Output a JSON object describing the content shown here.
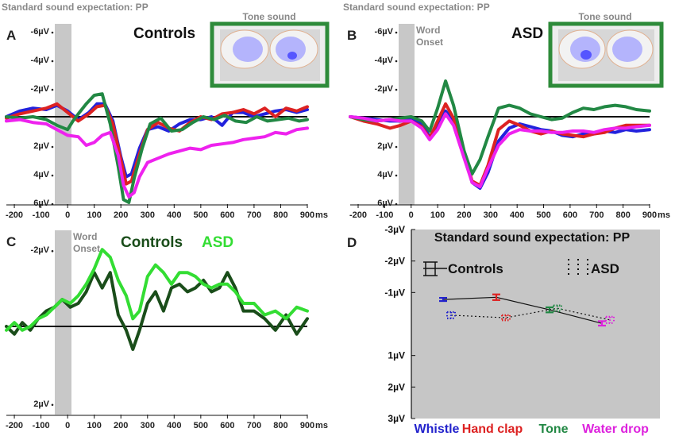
{
  "chart_data": [
    {
      "panel": "A",
      "type": "line",
      "title": "Controls",
      "header": "Standard sound expectation: PP",
      "inset_title": "Tone sound",
      "onset_label": "",
      "xlabel": "ms",
      "x_ticks": [
        -200,
        -100,
        0,
        100,
        200,
        300,
        400,
        500,
        600,
        700,
        800,
        900
      ],
      "y_ticks": [
        {
          "v": -6,
          "l": "-6µV"
        },
        {
          "v": -4,
          "l": "-4µV"
        },
        {
          "v": -2,
          "l": "-2µV"
        },
        {
          "v": 2,
          "l": "2µV"
        },
        {
          "v": 4,
          "l": "4µV"
        },
        {
          "v": 6,
          "l": "6µV"
        }
      ],
      "ylim": [
        -6.5,
        6.5
      ],
      "xlim": [
        -230,
        900
      ],
      "series": [
        {
          "name": "Whistle",
          "color": "#2222dd",
          "x": [
            -230,
            -180,
            -130,
            -80,
            -40,
            0,
            40,
            80,
            110,
            140,
            170,
            200,
            220,
            240,
            270,
            300,
            340,
            380,
            420,
            460,
            500,
            540,
            580,
            620,
            660,
            700,
            740,
            780,
            820,
            860,
            900
          ],
          "y": [
            0,
            -0.4,
            -0.6,
            -0.5,
            -0.8,
            -0.4,
            0.2,
            -0.3,
            -0.9,
            -0.9,
            0.3,
            2.8,
            4.2,
            4.0,
            2.2,
            0.9,
            0.7,
            1.0,
            0.5,
            0.2,
            0.2,
            0.0,
            0.6,
            -0.3,
            -0.3,
            0.0,
            -0.2,
            -0.4,
            -0.5,
            -0.3,
            -0.5
          ]
        },
        {
          "name": "Hand clap",
          "color": "#dd2222",
          "x": [
            -230,
            -180,
            -130,
            -80,
            -40,
            0,
            40,
            80,
            110,
            140,
            170,
            200,
            220,
            240,
            270,
            300,
            340,
            380,
            420,
            460,
            500,
            540,
            580,
            620,
            660,
            700,
            740,
            780,
            820,
            860,
            900
          ],
          "y": [
            0.1,
            -0.2,
            -0.4,
            -0.6,
            -0.9,
            -0.3,
            0.3,
            -0.2,
            -0.7,
            -0.8,
            0.5,
            3.0,
            4.7,
            4.5,
            2.6,
            0.9,
            0.4,
            0.8,
            1.0,
            0.4,
            0.0,
            0.2,
            -0.2,
            -0.3,
            -0.5,
            -0.2,
            -0.6,
            0.0,
            -0.6,
            -0.4,
            -0.7
          ]
        },
        {
          "name": "Tone",
          "color": "#228844",
          "x": [
            -230,
            -180,
            -130,
            -80,
            -40,
            0,
            20,
            40,
            70,
            100,
            130,
            160,
            190,
            210,
            230,
            250,
            280,
            310,
            350,
            390,
            430,
            470,
            510,
            550,
            590,
            630,
            670,
            710,
            750,
            790,
            830,
            870,
            900
          ],
          "y": [
            0,
            0.1,
            0,
            0.2,
            0.6,
            0.9,
            0.3,
            -0.2,
            -0.9,
            -1.5,
            -1.6,
            0.5,
            3.5,
            5.8,
            6.0,
            4.3,
            2.2,
            0.5,
            0.1,
            1.0,
            0.9,
            0.4,
            0.0,
            0.2,
            -0.1,
            0.3,
            0.4,
            0.0,
            0.3,
            0.2,
            0.1,
            0.3,
            0.2
          ]
        },
        {
          "name": "Water drop",
          "color": "#ee22ee",
          "x": [
            -230,
            -180,
            -130,
            -80,
            -40,
            0,
            40,
            70,
            100,
            130,
            160,
            190,
            210,
            230,
            250,
            270,
            300,
            340,
            380,
            420,
            460,
            500,
            540,
            580,
            620,
            660,
            700,
            740,
            780,
            820,
            860,
            900
          ],
          "y": [
            0.3,
            0.2,
            0.4,
            0.5,
            0.9,
            1.3,
            1.4,
            2.0,
            1.8,
            1.3,
            1.1,
            2.7,
            4.8,
            5.6,
            5.3,
            4.2,
            3.2,
            2.9,
            2.6,
            2.4,
            2.2,
            2.3,
            2.0,
            1.9,
            1.8,
            1.6,
            1.5,
            1.4,
            1.1,
            1.2,
            0.9,
            0.8
          ]
        }
      ]
    },
    {
      "panel": "B",
      "type": "line",
      "title": "ASD",
      "header": "Standard sound expectation: PP",
      "inset_title": "Tone sound",
      "onset_label": "Word Onset",
      "xlabel": "ms",
      "x_ticks": [
        -200,
        -100,
        0,
        100,
        200,
        300,
        400,
        500,
        600,
        700,
        800,
        900
      ],
      "y_ticks": [
        {
          "v": -6,
          "l": "-6µV"
        },
        {
          "v": -4,
          "l": "-4µV"
        },
        {
          "v": -2,
          "l": "-2µV"
        },
        {
          "v": 2,
          "l": "2µV"
        },
        {
          "v": 4,
          "l": "4µV"
        },
        {
          "v": 6,
          "l": "6µV"
        }
      ],
      "ylim": [
        -6.5,
        6.5
      ],
      "xlim": [
        -230,
        900
      ],
      "series": [
        {
          "name": "Whistle",
          "color": "#2222dd",
          "x": [
            -230,
            -180,
            -130,
            -80,
            -40,
            0,
            40,
            70,
            100,
            130,
            160,
            200,
            230,
            260,
            290,
            330,
            370,
            410,
            450,
            490,
            530,
            570,
            610,
            650,
            690,
            730,
            770,
            810,
            850,
            900
          ],
          "y": [
            0,
            0.1,
            0.2,
            0.3,
            0.3,
            0.1,
            0.5,
            1.4,
            0.6,
            -0.4,
            0.3,
            2.6,
            4.6,
            5.0,
            3.9,
            1.7,
            0.8,
            0.5,
            0.7,
            0.9,
            1.0,
            1.3,
            1.4,
            1.2,
            1.2,
            1.0,
            1.1,
            0.9,
            1.0,
            0.9
          ]
        },
        {
          "name": "Hand clap",
          "color": "#dd2222",
          "x": [
            -230,
            -180,
            -130,
            -80,
            -40,
            0,
            40,
            70,
            100,
            130,
            160,
            200,
            230,
            260,
            290,
            330,
            370,
            410,
            450,
            490,
            530,
            570,
            610,
            650,
            690,
            730,
            770,
            810,
            850,
            900
          ],
          "y": [
            0,
            0.3,
            0.5,
            0.8,
            0.6,
            0.3,
            0.7,
            1.5,
            0.3,
            -0.9,
            0.1,
            2.6,
            4.5,
            4.8,
            3.4,
            0.9,
            0.3,
            0.6,
            1.0,
            1.2,
            1.0,
            1.2,
            1.3,
            1.4,
            1.2,
            1.1,
            0.8,
            0.6,
            0.6,
            0.6
          ]
        },
        {
          "name": "Tone",
          "color": "#228844",
          "x": [
            -230,
            -180,
            -130,
            -80,
            -40,
            0,
            40,
            70,
            100,
            130,
            160,
            200,
            230,
            260,
            290,
            330,
            370,
            410,
            450,
            490,
            530,
            570,
            610,
            650,
            690,
            730,
            770,
            810,
            850,
            900
          ],
          "y": [
            0,
            0.2,
            0.3,
            0.2,
            0.1,
            0.0,
            0.3,
            1.0,
            -0.6,
            -2.5,
            -0.8,
            2.4,
            4.0,
            3.0,
            1.4,
            -0.6,
            -0.8,
            -0.6,
            -0.2,
            0.0,
            0.2,
            0.1,
            -0.3,
            -0.6,
            -0.5,
            -0.7,
            -0.8,
            -0.7,
            -0.5,
            -0.4
          ]
        },
        {
          "name": "Water drop",
          "color": "#ee22ee",
          "x": [
            -230,
            -180,
            -130,
            -80,
            -40,
            0,
            40,
            70,
            100,
            130,
            160,
            200,
            230,
            260,
            290,
            330,
            370,
            410,
            450,
            490,
            530,
            570,
            610,
            650,
            690,
            730,
            770,
            810,
            850,
            900
          ],
          "y": [
            0,
            0.1,
            0.3,
            0.2,
            0.3,
            0.3,
            0.8,
            1.6,
            0.9,
            -0.2,
            0.6,
            2.9,
            4.6,
            4.9,
            3.6,
            2.0,
            1.2,
            0.9,
            1.0,
            1.0,
            1.1,
            1.1,
            1.0,
            1.0,
            1.1,
            0.9,
            0.8,
            0.8,
            0.7,
            0.6
          ]
        }
      ]
    },
    {
      "panel": "C",
      "type": "line",
      "title": "",
      "onset_label": "Word Onset",
      "xlabel": "ms",
      "x_ticks": [
        -200,
        -100,
        0,
        100,
        200,
        300,
        400,
        500,
        600,
        700,
        800,
        900
      ],
      "y_ticks": [
        {
          "v": -2,
          "l": "-2µV"
        },
        {
          "v": 2,
          "l": "2µV"
        }
      ],
      "ylim": [
        -2.5,
        2.5
      ],
      "xlim": [
        -230,
        900
      ],
      "series": [
        {
          "name": "Controls",
          "color": "#1a4d1a",
          "x": [
            -230,
            -200,
            -170,
            -140,
            -110,
            -80,
            -50,
            -20,
            10,
            40,
            70,
            100,
            130,
            160,
            190,
            220,
            245,
            270,
            300,
            330,
            360,
            390,
            420,
            450,
            480,
            510,
            540,
            570,
            600,
            630,
            660,
            700,
            740,
            780,
            820,
            860,
            900
          ],
          "y": [
            0,
            0.2,
            -0.1,
            0.1,
            -0.2,
            -0.4,
            -0.5,
            -0.7,
            -0.5,
            -0.6,
            -0.9,
            -1.4,
            -1.0,
            -1.4,
            -0.3,
            0.1,
            0.6,
            0.1,
            -0.6,
            -0.9,
            -0.4,
            -1.0,
            -1.1,
            -0.9,
            -1.0,
            -1.2,
            -0.9,
            -1.0,
            -1.4,
            -1.0,
            -0.4,
            -0.4,
            -0.2,
            0.1,
            -0.3,
            0.2,
            -0.2
          ]
        },
        {
          "name": "ASD",
          "color": "#33dd33",
          "x": [
            -230,
            -200,
            -170,
            -140,
            -110,
            -80,
            -50,
            -20,
            10,
            40,
            70,
            100,
            130,
            160,
            190,
            220,
            245,
            270,
            300,
            330,
            360,
            390,
            420,
            450,
            480,
            510,
            540,
            570,
            600,
            630,
            660,
            700,
            740,
            780,
            820,
            860,
            900
          ],
          "y": [
            0.1,
            -0.1,
            0.1,
            0.0,
            -0.2,
            -0.3,
            -0.5,
            -0.7,
            -0.6,
            -0.8,
            -1.1,
            -1.5,
            -2.0,
            -1.8,
            -1.2,
            -0.8,
            -0.2,
            -0.4,
            -1.3,
            -1.6,
            -1.4,
            -1.1,
            -1.4,
            -1.4,
            -1.3,
            -1.1,
            -1.0,
            -1.1,
            -1.1,
            -0.9,
            -0.6,
            -0.6,
            -0.3,
            -0.4,
            -0.2,
            -0.5,
            -0.4
          ]
        }
      ],
      "legend": [
        {
          "name": "Controls",
          "color": "#1a4d1a"
        },
        {
          "name": "ASD",
          "color": "#33dd33"
        }
      ]
    },
    {
      "panel": "D",
      "type": "line",
      "title": "Standard sound expectation: PP",
      "categories": [
        "Whistle",
        "Hand clap",
        "Tone",
        "Water drop"
      ],
      "category_colors": [
        "#2222cc",
        "#dd2222",
        "#228844",
        "#dd22dd"
      ],
      "y_ticks": [
        {
          "v": -3,
          "l": "-3µV"
        },
        {
          "v": -2,
          "l": "-2µV"
        },
        {
          "v": -1,
          "l": "-1µV"
        },
        {
          "v": 1,
          "l": "1µV"
        },
        {
          "v": 2,
          "l": "2µV"
        },
        {
          "v": 3,
          "l": "3µV"
        }
      ],
      "ylim": [
        -3,
        3
      ],
      "series": [
        {
          "name": "Controls",
          "style": "solid",
          "values": [
            -0.78,
            -0.85,
            -0.45,
            -0.02
          ],
          "errors": [
            0.05,
            0.09,
            0.08,
            0.07
          ]
        },
        {
          "name": "ASD",
          "style": "dotted",
          "values": [
            -0.28,
            -0.2,
            -0.5,
            -0.13
          ],
          "errors": [
            0.1,
            0.08,
            0.09,
            0.1
          ]
        }
      ]
    }
  ]
}
